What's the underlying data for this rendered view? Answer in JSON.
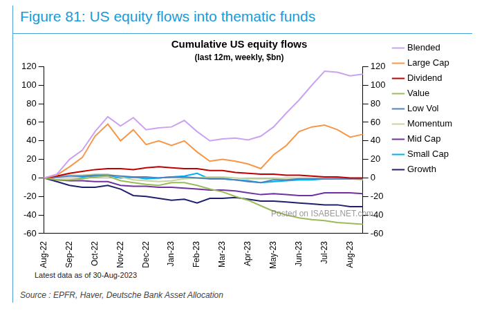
{
  "chart_data": {
    "type": "line",
    "header": "Figure 81: US equity flows into thematic funds",
    "title": "Cumulative US equity flows",
    "subtitle": "(last 12m, weekly, $bn)",
    "note": "Latest data as of 30-Aug-2023",
    "source": "Source : EPFR, Haver, Deutsche Bank Asset Allocation",
    "watermark": "Posted on ISABELNET.com",
    "categories": [
      "Aug-22",
      null,
      "Sep-22",
      null,
      "Oct-22",
      null,
      "Nov-22",
      null,
      "Dec-22",
      null,
      "Jan-23",
      null,
      "Feb-23",
      null,
      "Mar-23",
      null,
      "Apr-23",
      null,
      "May-23",
      null,
      "Jun-23",
      null,
      "Jul-23",
      null,
      "Aug-23",
      null
    ],
    "series": [
      {
        "name": "Blended",
        "color": "#c9a3f2",
        "values": [
          0,
          4,
          20,
          30,
          50,
          66,
          56,
          65,
          52,
          54,
          55,
          62,
          50,
          40,
          42,
          43,
          41,
          45,
          55,
          70,
          84,
          100,
          115,
          114,
          110,
          112
        ]
      },
      {
        "name": "Large Cap",
        "color": "#f79646",
        "values": [
          0,
          3,
          12,
          22,
          45,
          58,
          40,
          52,
          36,
          40,
          35,
          40,
          28,
          18,
          20,
          18,
          15,
          10,
          25,
          35,
          50,
          55,
          57,
          52,
          44,
          47
        ]
      },
      {
        "name": "Dividend",
        "color": "#c00000",
        "values": [
          0,
          2,
          5,
          7,
          9,
          10,
          10,
          9,
          11,
          12,
          11,
          10,
          10,
          8,
          8,
          6,
          5,
          4,
          4,
          3,
          3,
          2,
          1,
          1,
          0,
          0
        ]
      },
      {
        "name": "Value",
        "color": "#9bbb59",
        "values": [
          0,
          -2,
          -2,
          -1,
          1,
          2,
          -3,
          -5,
          -7,
          -8,
          -5,
          -5,
          -8,
          -12,
          -15,
          -20,
          -24,
          -30,
          -36,
          -40,
          -43,
          -45,
          -46,
          -48,
          -49,
          -50
        ]
      },
      {
        "name": "Low Vol",
        "color": "#4f81bd",
        "values": [
          0,
          1,
          2,
          2,
          3,
          3,
          2,
          1,
          1,
          0,
          1,
          1,
          0,
          -1,
          -1,
          -2,
          -4,
          -5,
          -2,
          -2,
          -1,
          -1,
          -1,
          -1,
          -1,
          -1
        ]
      },
      {
        "name": "Momentum",
        "color": "#c3d69b",
        "values": [
          0,
          2,
          3,
          3,
          4,
          4,
          1,
          -2,
          -3,
          -4,
          -3,
          -1,
          0,
          1,
          1,
          0,
          -1,
          -1,
          -1,
          0,
          0,
          0,
          0,
          -1,
          -1,
          -2
        ]
      },
      {
        "name": "Mid Cap",
        "color": "#7030a0",
        "values": [
          0,
          -2,
          -3,
          -3,
          -4,
          -4,
          -8,
          -9,
          -9,
          -10,
          -10,
          -11,
          -12,
          -13,
          -13,
          -14,
          -16,
          -18,
          -17,
          -18,
          -19,
          -19,
          -16,
          -16,
          -16,
          -17
        ]
      },
      {
        "name": "Small Cap",
        "color": "#00b0f0",
        "values": [
          0,
          2,
          3,
          1,
          2,
          3,
          0,
          1,
          -1,
          0,
          1,
          2,
          5,
          -1,
          -1,
          -2,
          -3,
          -5,
          -4,
          -3,
          -2,
          -2,
          -1,
          -1,
          -1,
          -1
        ]
      },
      {
        "name": "Growth",
        "color": "#1f1f6e",
        "values": [
          0,
          -4,
          -8,
          -10,
          -10,
          -8,
          -12,
          -19,
          -20,
          -22,
          -24,
          -23,
          -27,
          -22,
          -22,
          -21,
          -23,
          -25,
          -25,
          -26,
          -27,
          -28,
          -29,
          -29,
          -31,
          -31
        ]
      }
    ],
    "ylim": [
      -60,
      120
    ],
    "yticks": [
      -60,
      -40,
      -20,
      0,
      20,
      40,
      60,
      80,
      100,
      120
    ],
    "y2lim": [
      -60,
      120
    ],
    "y2ticks": [
      -60,
      -40,
      -20,
      0,
      20,
      40,
      60,
      80,
      100,
      120
    ],
    "grid": false,
    "legend": "right"
  }
}
